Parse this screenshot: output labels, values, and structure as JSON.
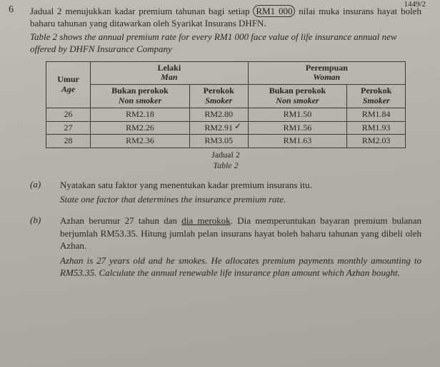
{
  "page_corner": "1449/2",
  "question_number": "6",
  "intro_my": "Jadual 2 menujukkan kadar premium tahunan bagi setiap",
  "intro_my_circled": "RM1 000",
  "intro_my_tail": "nilai muka insurans hayat boleh baharu tahunan yang ditawarkan oleh Syarikat Insurans DHFN.",
  "intro_en": "Table 2 shows the annual premium rate for every RM1 000 face value of life insurance annual new offered by DHFN Insurance Company",
  "headers": {
    "age_my": "Umur",
    "age_en": "Age",
    "man_my": "Lelaki",
    "man_en": "Man",
    "woman_my": "Perempuan",
    "woman_en": "Woman",
    "nonsmoker_my": "Bukan perokok",
    "nonsmoker_en": "Non smoker",
    "smoker_my": "Perokok",
    "smoker_en": "Smoker"
  },
  "rows": [
    {
      "age": "26",
      "m_ns": "RM2.18",
      "m_s": "RM2.80",
      "w_ns": "RM1.50",
      "w_s": "RM1.84"
    },
    {
      "age": "27",
      "m_ns": "RM2.26",
      "m_s": "RM2.91",
      "w_ns": "RM1.56",
      "w_s": "RM1.93"
    },
    {
      "age": "28",
      "m_ns": "RM2.36",
      "m_s": "RM3.05",
      "w_ns": "RM1.63",
      "w_s": "RM2.03"
    }
  ],
  "caption_my": "Jadual 2",
  "caption_en": "Table 2",
  "part_a": {
    "label": "(a)",
    "my": "Nyatakan satu faktor yang menentukan kadar premium insurans itu.",
    "en": "State one factor that determines the insurance premium rate."
  },
  "part_b": {
    "label": "(b)",
    "my_1": "Azhan berumur 27 tahun dan ",
    "my_uline": "dia merokok",
    "my_2": ". Dia memperuntukan bayaran premium bulanan berjumlah RM53.35. Hitung jumlah pelan insurans hayat boleh baharu tahunan yang dibeli oleh Azhan.",
    "en": "Azhan is 27 years old and he smokes. He allocates premium payments monthly amounting to RM53.35. Calculate the annual renewable life insurance plan amount which Azhan bought."
  }
}
